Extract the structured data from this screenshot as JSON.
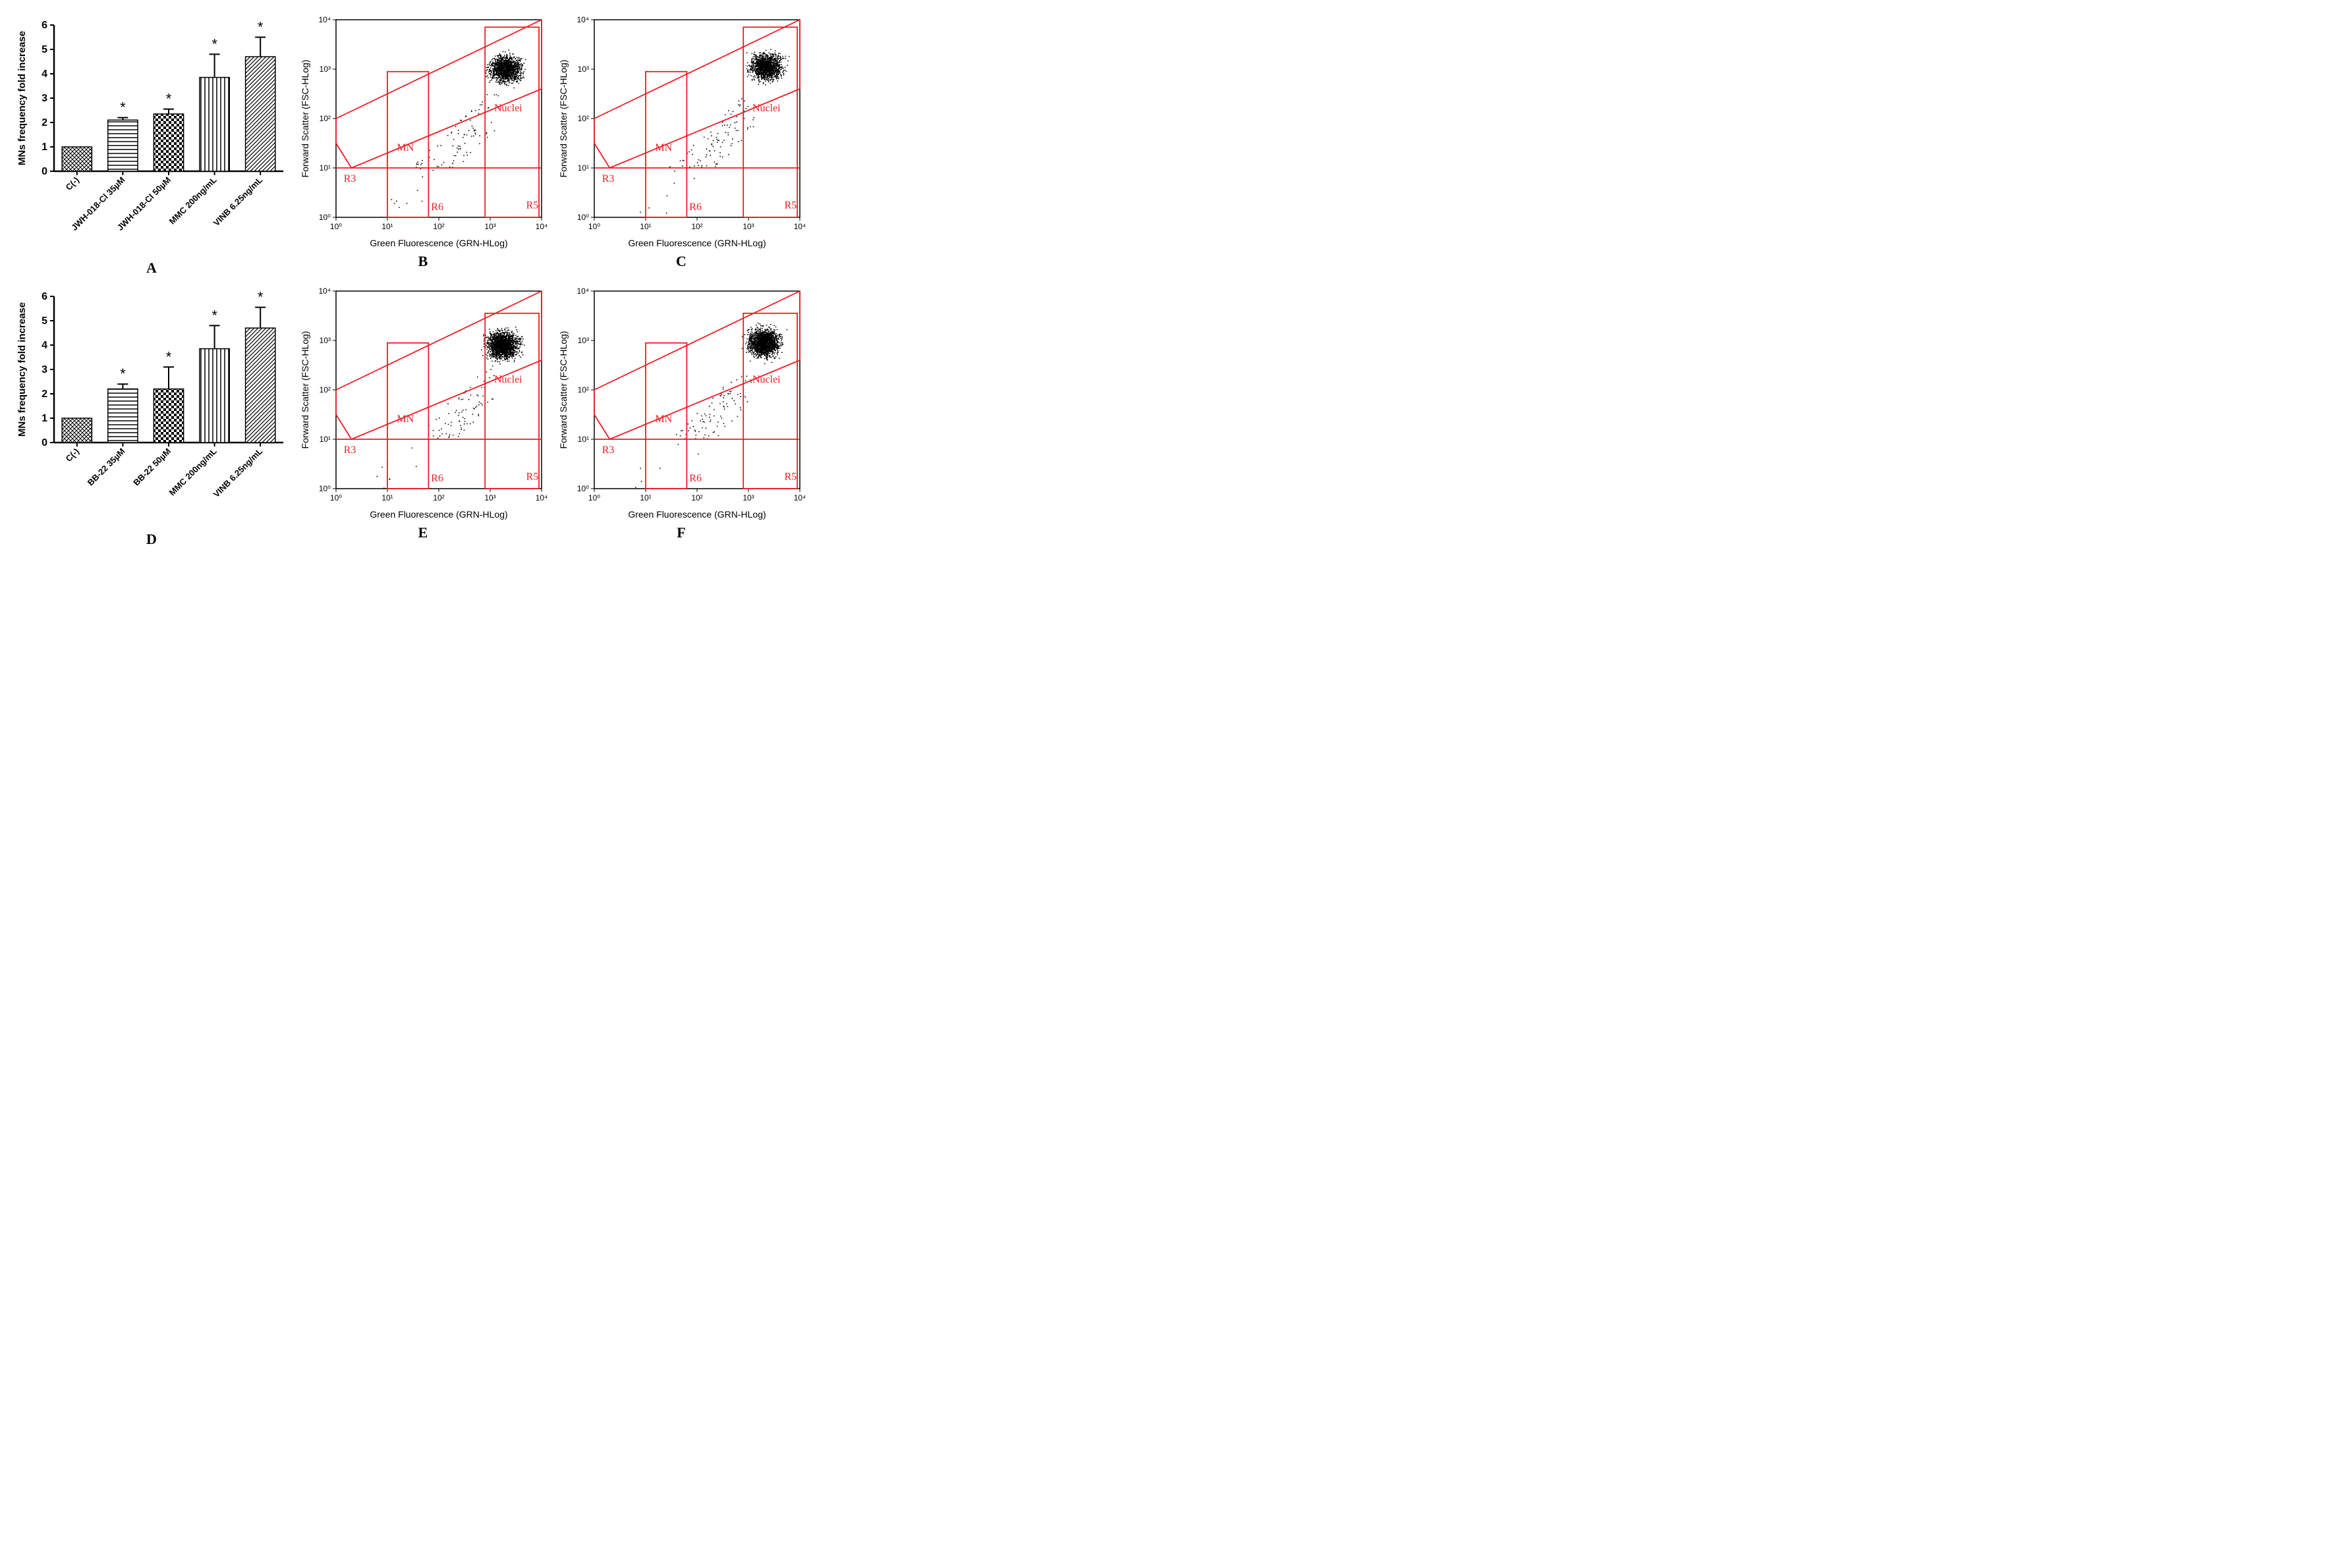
{
  "colors": {
    "bg": "#ffffff",
    "black": "#000000",
    "red": "#ee1b24",
    "redline": "#ed1c24"
  },
  "fonts": {
    "axis": "Arial, sans-serif",
    "label": "Times New Roman, serif"
  },
  "bar_charts": {
    "common": {
      "ylabel": "MNs frequency fold increase",
      "ylim": [
        0,
        6
      ],
      "ytick_step": 1,
      "bar_width": 0.65,
      "star": "*"
    },
    "A": {
      "panel_label": "A",
      "categories": [
        "C(-)",
        "JWH-018-Cl 35µM",
        "JWH-018-Cl 50µM",
        "MMC 200ng/mL",
        "VINB 6.25ng/mL"
      ],
      "values": [
        1.0,
        2.1,
        2.35,
        3.85,
        4.7
      ],
      "errors": [
        0,
        0.1,
        0.2,
        0.95,
        0.8
      ],
      "sig": [
        false,
        true,
        true,
        true,
        true
      ],
      "patterns": [
        "crosshatch",
        "hstripe",
        "checker",
        "vstripe",
        "diag"
      ]
    },
    "D": {
      "panel_label": "D",
      "categories": [
        "C(-)",
        "BB-22 35µM",
        "BB-22 50µM",
        "MMC 200ng/mL",
        "VINB 6.25ng/mL"
      ],
      "values": [
        1.0,
        2.2,
        2.2,
        3.85,
        4.7
      ],
      "errors": [
        0,
        0.2,
        0.9,
        0.95,
        0.85
      ],
      "sig": [
        false,
        true,
        true,
        true,
        true
      ],
      "patterns": [
        "crosshatch",
        "hstripe",
        "checker",
        "vstripe",
        "diag"
      ]
    }
  },
  "scatter_plots": {
    "common": {
      "xlabel": "Green Fluorescence (GRN-HLog)",
      "ylabel": "Forward Scatter (FSC-HLog)",
      "log_range": [
        0,
        4
      ],
      "tick_labels": [
        "10⁰",
        "10¹",
        "10²",
        "10³",
        "10⁴"
      ],
      "region_labels": {
        "MN": "MN",
        "Nuclei": "Nuclei",
        "R3": "R3",
        "R5": "R5",
        "R6": "R6"
      },
      "gate_regions": {
        "hline_y": 1.0,
        "mn_box": {
          "x0": 1.0,
          "x1": 1.8,
          "y0": 0,
          "y1": 2.95
        },
        "nuclei_box": {
          "x0": 2.9,
          "x1": 3.95,
          "y0": 0,
          "y1": 3.85
        },
        "diag_upper": {
          "x0": 0,
          "y0": 2.0,
          "x1": 4,
          "y1": 4.0
        },
        "diag_lower": {
          "x0": 0,
          "y0": 0.4,
          "x1": 4,
          "y1": 2.6
        },
        "diag_lower_kink": {
          "x0": 0,
          "y0": 1.5,
          "x1": 0.3,
          "y1": 1.0
        }
      }
    },
    "B": {
      "panel_label": "B",
      "density": "low",
      "cluster_center": [
        3.3,
        3.0
      ],
      "nuclei_box_y1": 3.85
    },
    "C": {
      "panel_label": "C",
      "density": "low",
      "cluster_center": [
        3.35,
        3.05
      ],
      "nuclei_box_y1": 3.85
    },
    "E": {
      "panel_label": "E",
      "density": "med",
      "cluster_center": [
        3.25,
        2.9
      ],
      "nuclei_box_y1": 3.55
    },
    "F": {
      "panel_label": "F",
      "density": "med",
      "cluster_center": [
        3.3,
        2.95
      ],
      "nuclei_box_y1": 3.55
    }
  }
}
